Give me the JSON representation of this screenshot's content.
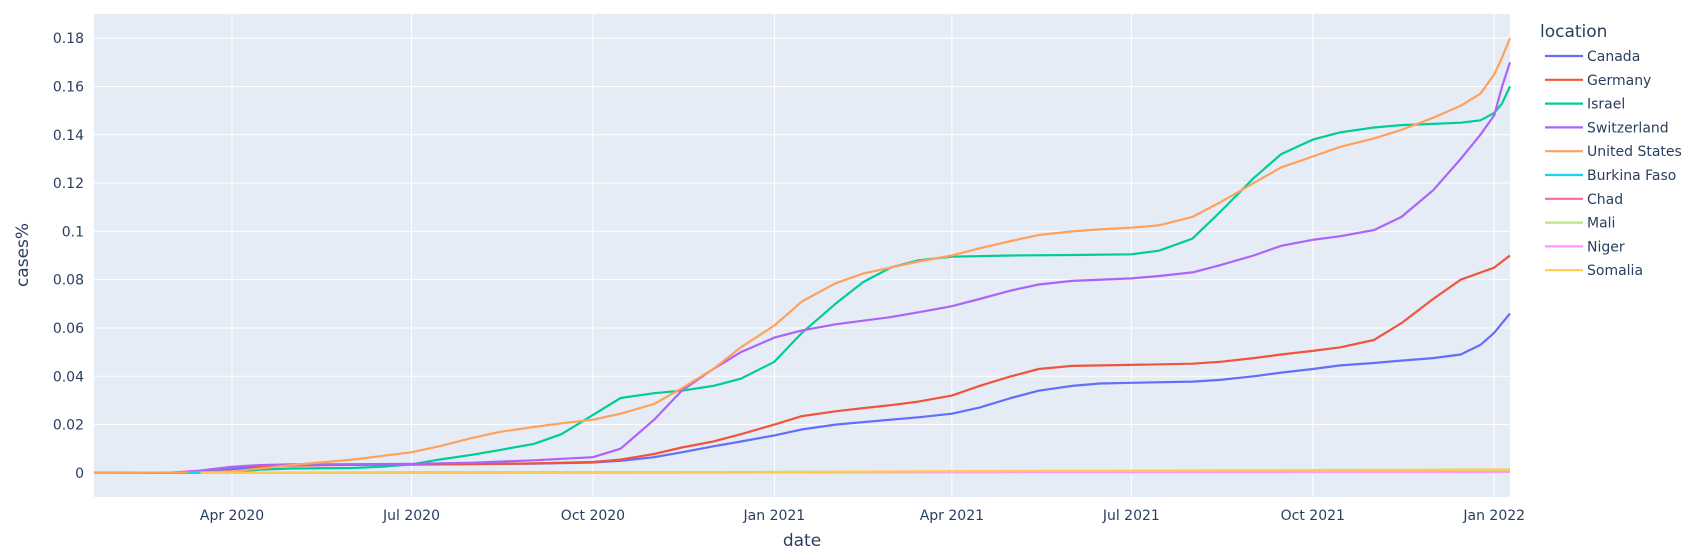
{
  "chart_data": {
    "type": "line",
    "title": "",
    "xlabel": "date",
    "ylabel": "cases%",
    "legend_title": "location",
    "legend_position": "right",
    "grid": true,
    "plot_bg": "#e5ecf6",
    "xlim": [
      "2020-01-22",
      "2022-01-09"
    ],
    "ylim": [
      -0.01,
      0.19
    ],
    "x_ticks": [
      {
        "value": "2020-04-01",
        "label": "Apr 2020"
      },
      {
        "value": "2020-07-01",
        "label": "Jul 2020"
      },
      {
        "value": "2020-10-01",
        "label": "Oct 2020"
      },
      {
        "value": "2021-01-01",
        "label": "Jan 2021"
      },
      {
        "value": "2021-04-01",
        "label": "Apr 2021"
      },
      {
        "value": "2021-07-01",
        "label": "Jul 2021"
      },
      {
        "value": "2021-10-01",
        "label": "Oct 2021"
      },
      {
        "value": "2022-01-01",
        "label": "Jan 2022"
      }
    ],
    "y_ticks": [
      {
        "value": 0,
        "label": "0"
      },
      {
        "value": 0.02,
        "label": "0.02"
      },
      {
        "value": 0.04,
        "label": "0.04"
      },
      {
        "value": 0.06,
        "label": "0.06"
      },
      {
        "value": 0.08,
        "label": "0.08"
      },
      {
        "value": 0.1,
        "label": "0.1"
      },
      {
        "value": 0.12,
        "label": "0.12"
      },
      {
        "value": 0.14,
        "label": "0.14"
      },
      {
        "value": 0.16,
        "label": "0.16"
      },
      {
        "value": 0.18,
        "label": "0.18"
      }
    ],
    "series": [
      {
        "name": "Canada",
        "color": "#636efa",
        "points": [
          [
            "2020-01-22",
            0
          ],
          [
            "2020-03-01",
            0
          ],
          [
            "2020-03-15",
            0.0003
          ],
          [
            "2020-04-01",
            0.0015
          ],
          [
            "2020-04-15",
            0.0025
          ],
          [
            "2020-05-01",
            0.003
          ],
          [
            "2020-06-01",
            0.0035
          ],
          [
            "2020-07-01",
            0.0036
          ],
          [
            "2020-08-01",
            0.0037
          ],
          [
            "2020-09-01",
            0.0038
          ],
          [
            "2020-10-01",
            0.0043
          ],
          [
            "2020-10-15",
            0.005
          ],
          [
            "2020-11-01",
            0.0065
          ],
          [
            "2020-11-15",
            0.0085
          ],
          [
            "2020-12-01",
            0.011
          ],
          [
            "2020-12-15",
            0.013
          ],
          [
            "2021-01-01",
            0.0155
          ],
          [
            "2021-01-15",
            0.018
          ],
          [
            "2021-02-01",
            0.02
          ],
          [
            "2021-02-15",
            0.021
          ],
          [
            "2021-03-01",
            0.022
          ],
          [
            "2021-03-15",
            0.023
          ],
          [
            "2021-04-01",
            0.0245
          ],
          [
            "2021-04-15",
            0.027
          ],
          [
            "2021-05-01",
            0.031
          ],
          [
            "2021-05-15",
            0.034
          ],
          [
            "2021-06-01",
            0.036
          ],
          [
            "2021-06-15",
            0.037
          ],
          [
            "2021-07-01",
            0.0373
          ],
          [
            "2021-08-01",
            0.0378
          ],
          [
            "2021-08-15",
            0.0385
          ],
          [
            "2021-09-01",
            0.04
          ],
          [
            "2021-09-15",
            0.0415
          ],
          [
            "2021-10-01",
            0.043
          ],
          [
            "2021-10-15",
            0.0445
          ],
          [
            "2021-11-01",
            0.0455
          ],
          [
            "2021-11-15",
            0.0465
          ],
          [
            "2021-12-01",
            0.0475
          ],
          [
            "2021-12-15",
            0.049
          ],
          [
            "2021-12-25",
            0.053
          ],
          [
            "2022-01-01",
            0.058
          ],
          [
            "2022-01-05",
            0.062
          ],
          [
            "2022-01-09",
            0.066
          ]
        ]
      },
      {
        "name": "Germany",
        "color": "#ef553b",
        "points": [
          [
            "2020-01-22",
            0
          ],
          [
            "2020-03-01",
            0.0001
          ],
          [
            "2020-03-15",
            0.0008
          ],
          [
            "2020-04-01",
            0.0025
          ],
          [
            "2020-04-15",
            0.0028
          ],
          [
            "2020-05-01",
            0.0031
          ],
          [
            "2020-06-01",
            0.0033
          ],
          [
            "2020-07-01",
            0.0034
          ],
          [
            "2020-08-01",
            0.0036
          ],
          [
            "2020-09-01",
            0.0039
          ],
          [
            "2020-10-01",
            0.0045
          ],
          [
            "2020-10-15",
            0.0055
          ],
          [
            "2020-11-01",
            0.0078
          ],
          [
            "2020-11-15",
            0.0105
          ],
          [
            "2020-12-01",
            0.013
          ],
          [
            "2020-12-15",
            0.016
          ],
          [
            "2021-01-01",
            0.02
          ],
          [
            "2021-01-15",
            0.0235
          ],
          [
            "2021-02-01",
            0.0255
          ],
          [
            "2021-02-15",
            0.0268
          ],
          [
            "2021-03-01",
            0.028
          ],
          [
            "2021-03-15",
            0.0295
          ],
          [
            "2021-04-01",
            0.032
          ],
          [
            "2021-04-15",
            0.036
          ],
          [
            "2021-05-01",
            0.04
          ],
          [
            "2021-05-15",
            0.043
          ],
          [
            "2021-06-01",
            0.0443
          ],
          [
            "2021-07-01",
            0.0447
          ],
          [
            "2021-08-01",
            0.0452
          ],
          [
            "2021-08-15",
            0.046
          ],
          [
            "2021-09-01",
            0.0475
          ],
          [
            "2021-09-15",
            0.049
          ],
          [
            "2021-10-01",
            0.0505
          ],
          [
            "2021-10-15",
            0.052
          ],
          [
            "2021-11-01",
            0.055
          ],
          [
            "2021-11-15",
            0.062
          ],
          [
            "2021-12-01",
            0.072
          ],
          [
            "2021-12-15",
            0.08
          ],
          [
            "2022-01-01",
            0.085
          ],
          [
            "2022-01-09",
            0.09
          ]
        ]
      },
      {
        "name": "Israel",
        "color": "#00cc96",
        "points": [
          [
            "2020-01-22",
            0
          ],
          [
            "2020-03-15",
            0
          ],
          [
            "2020-04-01",
            0.0005
          ],
          [
            "2020-04-15",
            0.0013
          ],
          [
            "2020-05-01",
            0.0018
          ],
          [
            "2020-06-01",
            0.002
          ],
          [
            "2020-06-15",
            0.0025
          ],
          [
            "2020-07-01",
            0.0035
          ],
          [
            "2020-07-15",
            0.0055
          ],
          [
            "2020-08-01",
            0.0075
          ],
          [
            "2020-08-15",
            0.0095
          ],
          [
            "2020-09-01",
            0.012
          ],
          [
            "2020-09-15",
            0.016
          ],
          [
            "2020-10-01",
            0.024
          ],
          [
            "2020-10-15",
            0.031
          ],
          [
            "2020-11-01",
            0.033
          ],
          [
            "2020-11-15",
            0.034
          ],
          [
            "2020-12-01",
            0.036
          ],
          [
            "2020-12-15",
            0.039
          ],
          [
            "2021-01-01",
            0.046
          ],
          [
            "2021-01-15",
            0.058
          ],
          [
            "2021-02-01",
            0.07
          ],
          [
            "2021-02-15",
            0.079
          ],
          [
            "2021-03-01",
            0.085
          ],
          [
            "2021-03-15",
            0.088
          ],
          [
            "2021-04-01",
            0.0895
          ],
          [
            "2021-05-01",
            0.09
          ],
          [
            "2021-06-01",
            0.0902
          ],
          [
            "2021-07-01",
            0.0905
          ],
          [
            "2021-07-15",
            0.092
          ],
          [
            "2021-08-01",
            0.097
          ],
          [
            "2021-08-15",
            0.108
          ],
          [
            "2021-09-01",
            0.122
          ],
          [
            "2021-09-15",
            0.132
          ],
          [
            "2021-10-01",
            0.138
          ],
          [
            "2021-10-15",
            0.141
          ],
          [
            "2021-11-01",
            0.143
          ],
          [
            "2021-11-15",
            0.144
          ],
          [
            "2021-12-01",
            0.1445
          ],
          [
            "2021-12-15",
            0.145
          ],
          [
            "2021-12-25",
            0.146
          ],
          [
            "2022-01-01",
            0.149
          ],
          [
            "2022-01-05",
            0.153
          ],
          [
            "2022-01-09",
            0.16
          ]
        ]
      },
      {
        "name": "Switzerland",
        "color": "#ab63fa",
        "points": [
          [
            "2020-01-22",
            0
          ],
          [
            "2020-03-01",
            0
          ],
          [
            "2020-03-15",
            0.0008
          ],
          [
            "2020-04-01",
            0.0025
          ],
          [
            "2020-04-15",
            0.0032
          ],
          [
            "2020-05-01",
            0.0035
          ],
          [
            "2020-06-01",
            0.0036
          ],
          [
            "2020-07-01",
            0.0037
          ],
          [
            "2020-08-01",
            0.0042
          ],
          [
            "2020-09-01",
            0.0052
          ],
          [
            "2020-10-01",
            0.0065
          ],
          [
            "2020-10-15",
            0.01
          ],
          [
            "2020-11-01",
            0.022
          ],
          [
            "2020-11-15",
            0.034
          ],
          [
            "2020-12-01",
            0.043
          ],
          [
            "2020-12-15",
            0.05
          ],
          [
            "2021-01-01",
            0.056
          ],
          [
            "2021-01-15",
            0.059
          ],
          [
            "2021-02-01",
            0.0615
          ],
          [
            "2021-02-15",
            0.063
          ],
          [
            "2021-03-01",
            0.0645
          ],
          [
            "2021-03-15",
            0.0665
          ],
          [
            "2021-04-01",
            0.069
          ],
          [
            "2021-04-15",
            0.072
          ],
          [
            "2021-05-01",
            0.0755
          ],
          [
            "2021-05-15",
            0.078
          ],
          [
            "2021-06-01",
            0.0795
          ],
          [
            "2021-07-01",
            0.0805
          ],
          [
            "2021-07-15",
            0.0815
          ],
          [
            "2021-08-01",
            0.083
          ],
          [
            "2021-08-15",
            0.086
          ],
          [
            "2021-09-01",
            0.09
          ],
          [
            "2021-09-15",
            0.094
          ],
          [
            "2021-10-01",
            0.0965
          ],
          [
            "2021-10-15",
            0.098
          ],
          [
            "2021-11-01",
            0.1005
          ],
          [
            "2021-11-15",
            0.106
          ],
          [
            "2021-12-01",
            0.117
          ],
          [
            "2021-12-15",
            0.13
          ],
          [
            "2021-12-25",
            0.14
          ],
          [
            "2022-01-01",
            0.148
          ],
          [
            "2022-01-05",
            0.16
          ],
          [
            "2022-01-09",
            0.17
          ]
        ]
      },
      {
        "name": "United States",
        "color": "#ffa15a",
        "points": [
          [
            "2020-01-22",
            0
          ],
          [
            "2020-03-15",
            0.0002
          ],
          [
            "2020-04-01",
            0.0006
          ],
          [
            "2020-04-15",
            0.0018
          ],
          [
            "2020-05-01",
            0.0032
          ],
          [
            "2020-06-01",
            0.0055
          ],
          [
            "2020-07-01",
            0.0085
          ],
          [
            "2020-07-15",
            0.011
          ],
          [
            "2020-08-01",
            0.0145
          ],
          [
            "2020-08-15",
            0.017
          ],
          [
            "2020-09-01",
            0.019
          ],
          [
            "2020-09-15",
            0.0205
          ],
          [
            "2020-10-01",
            0.022
          ],
          [
            "2020-10-15",
            0.0245
          ],
          [
            "2020-11-01",
            0.0285
          ],
          [
            "2020-11-15",
            0.035
          ],
          [
            "2020-12-01",
            0.043
          ],
          [
            "2020-12-15",
            0.052
          ],
          [
            "2021-01-01",
            0.061
          ],
          [
            "2021-01-15",
            0.071
          ],
          [
            "2021-02-01",
            0.0785
          ],
          [
            "2021-02-15",
            0.0825
          ],
          [
            "2021-03-01",
            0.085
          ],
          [
            "2021-03-15",
            0.0875
          ],
          [
            "2021-04-01",
            0.09
          ],
          [
            "2021-04-15",
            0.093
          ],
          [
            "2021-05-01",
            0.096
          ],
          [
            "2021-05-15",
            0.0985
          ],
          [
            "2021-06-01",
            0.1
          ],
          [
            "2021-06-15",
            0.1008
          ],
          [
            "2021-07-01",
            0.1015
          ],
          [
            "2021-07-15",
            0.1025
          ],
          [
            "2021-08-01",
            0.106
          ],
          [
            "2021-08-15",
            0.112
          ],
          [
            "2021-09-01",
            0.12
          ],
          [
            "2021-09-15",
            0.1265
          ],
          [
            "2021-10-01",
            0.131
          ],
          [
            "2021-10-15",
            0.135
          ],
          [
            "2021-11-01",
            0.1385
          ],
          [
            "2021-11-15",
            0.142
          ],
          [
            "2021-12-01",
            0.147
          ],
          [
            "2021-12-15",
            0.152
          ],
          [
            "2021-12-25",
            0.157
          ],
          [
            "2022-01-01",
            0.165
          ],
          [
            "2022-01-05",
            0.172
          ],
          [
            "2022-01-09",
            0.18
          ]
        ]
      },
      {
        "name": "Burkina Faso",
        "color": "#19d3f3",
        "points": [
          [
            "2020-03-10",
            0
          ],
          [
            "2020-03-20",
            0.0001
          ],
          [
            "2020-04-01",
            0.0001
          ],
          [
            "2020-07-01",
            0.0002
          ],
          [
            "2021-01-01",
            0.0003
          ],
          [
            "2021-07-01",
            0.0006
          ],
          [
            "2022-01-09",
            0.0008
          ]
        ]
      },
      {
        "name": "Chad",
        "color": "#ff6692",
        "points": [
          [
            "2020-03-20",
            0
          ],
          [
            "2020-07-01",
            0.0001
          ],
          [
            "2021-01-01",
            0.0002
          ],
          [
            "2021-07-01",
            0.0003
          ],
          [
            "2022-01-09",
            0.0004
          ]
        ]
      },
      {
        "name": "Mali",
        "color": "#b6e880",
        "points": [
          [
            "2020-03-25",
            0
          ],
          [
            "2020-07-01",
            0.0001
          ],
          [
            "2021-01-01",
            0.0004
          ],
          [
            "2021-07-01",
            0.0007
          ],
          [
            "2022-01-09",
            0.0011
          ]
        ]
      },
      {
        "name": "Niger",
        "color": "#ff97ff",
        "points": [
          [
            "2020-03-20",
            0
          ],
          [
            "2020-07-01",
            4e-05
          ],
          [
            "2021-01-01",
            0.00015
          ],
          [
            "2021-07-01",
            0.0002
          ],
          [
            "2022-01-09",
            0.0003
          ]
        ]
      },
      {
        "name": "Somalia",
        "color": "#fecb52",
        "points": [
          [
            "2020-03-16",
            0
          ],
          [
            "2020-07-01",
            0.0002
          ],
          [
            "2021-01-01",
            0.0003
          ],
          [
            "2021-04-01",
            0.0007
          ],
          [
            "2021-07-01",
            0.0009
          ],
          [
            "2022-01-09",
            0.0014
          ]
        ]
      }
    ]
  }
}
